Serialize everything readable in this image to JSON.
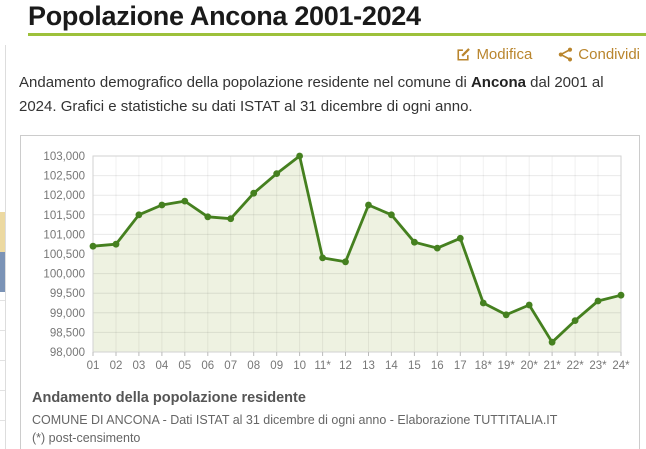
{
  "header": {
    "title": "Popolazione Ancona 2001-2024",
    "underline_color": "#9dc13b"
  },
  "actions": {
    "edit_label": "Modifica",
    "share_label": "Condividi",
    "link_color": "#b9852d",
    "edit_icon": "pencil-square-icon",
    "share_icon": "share-nodes-icon"
  },
  "intro": {
    "text_before": "Andamento demografico della popolazione residente nel comune di ",
    "highlight": "Ancona",
    "text_after": " dal 2001 al 2024. Grafici e statistiche su dati ISTAT al 31 dicembre di ogni anno."
  },
  "chart_data": {
    "type": "area",
    "title": "Andamento della popolazione residente",
    "source": "COMUNE DI ANCONA - Dati ISTAT al 31 dicembre di ogni anno - Elaborazione TUTTITALIA.IT",
    "footnote": "(*) post-censimento",
    "categories": [
      "01",
      "02",
      "03",
      "04",
      "05",
      "06",
      "07",
      "08",
      "09",
      "10",
      "11*",
      "12",
      "13",
      "14",
      "15",
      "16",
      "17",
      "18*",
      "19*",
      "20*",
      "21*",
      "22*",
      "23*",
      "24*"
    ],
    "values": [
      100700,
      100750,
      101500,
      101750,
      101850,
      101450,
      101400,
      102050,
      102550,
      103000,
      100400,
      100300,
      101750,
      101500,
      100800,
      100650,
      100900,
      99250,
      98950,
      99200,
      98250,
      98800,
      99300,
      99450
    ],
    "xlabel": "",
    "ylabel": "",
    "ylim": [
      98000,
      103000
    ],
    "y_tick_step": 500,
    "y_tick_labels": [
      "98,000",
      "98,500",
      "99,000",
      "99,500",
      "100,000",
      "100,500",
      "101,000",
      "101,500",
      "102,000",
      "102,500",
      "103,000"
    ],
    "grid": true,
    "legend_position": "none",
    "line_color": "#45801f",
    "fill_color": "#eef2e1",
    "marker": "circle"
  },
  "artifacts": {
    "left_strip": {
      "cream_color": "#ecd9a1",
      "blue_color": "#7b93b6"
    }
  }
}
